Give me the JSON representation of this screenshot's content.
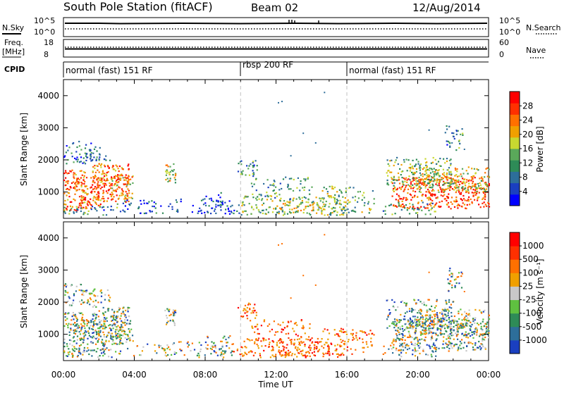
{
  "header": {
    "station": "South Pole Station (fitACF)",
    "beam": "Beam 02",
    "date": "12/Aug/2014"
  },
  "aux_labels": {
    "nsky": "N.Sky",
    "nsearch": "N.Search",
    "freq_line1": "Freq.",
    "freq_line2": "[MHz]",
    "nave": "Nave",
    "cpid": "CPID"
  },
  "aux_ticks": {
    "nsky_left_top": "10^5",
    "nsky_left_bottom": "10^0",
    "nsearch_right_top": "10^5",
    "nsearch_right_bottom": "10^0",
    "freq_top": "18",
    "freq_bottom": "8",
    "nave_top": "60",
    "nave_bottom": "0"
  },
  "cpid_segments": [
    {
      "label": "normal (fast) 151 RF",
      "start_hour": 0,
      "end_hour": 10
    },
    {
      "label": "rbsp 200 RF",
      "start_hour": 10,
      "end_hour": 16
    },
    {
      "label": "normal (fast) 151 RF",
      "start_hour": 16,
      "end_hour": 24
    }
  ],
  "x_axis": {
    "label": "Time UT",
    "ticks": [
      "00:00",
      "04:00",
      "08:00",
      "12:00",
      "16:00",
      "20:00",
      "00:00"
    ],
    "range_hours": [
      0,
      24
    ]
  },
  "panels": {
    "power": {
      "ylabel": "Slant Range [km]",
      "colorbar_label": "Power [dB]",
      "colorbar_ticks": [
        "28",
        "24",
        "20",
        "16",
        "12",
        "8",
        "4"
      ]
    },
    "velocity": {
      "ylabel": "Slant Range [km]",
      "colorbar_label": "Velocity  [m s⁻¹]",
      "colorbar_ticks": [
        "1000",
        "500",
        "100",
        "25",
        "-25",
        "-100",
        "-500",
        "-1000"
      ]
    }
  },
  "colors": {
    "power_scale": [
      "#0000ff",
      "#1a3fc0",
      "#2d6e9a",
      "#2e8b57",
      "#5aa85a",
      "#c8d830",
      "#f0a000",
      "#ff7000",
      "#ff3000",
      "#ff0000"
    ],
    "velocity_scale": [
      "#1a3fc0",
      "#2d6e9a",
      "#2e8b57",
      "#5fc040",
      "#c8c8c8",
      "#f0a000",
      "#ff7000",
      "#ff3000",
      "#ff0000"
    ],
    "axis": "#000000",
    "divider": "#c0c0c0"
  },
  "chart_data": {
    "type": "heatmap",
    "x_range_hours": [
      0,
      24
    ],
    "y_range_km": [
      180,
      4500
    ],
    "y_ticks_km": [
      1000,
      2000,
      3000,
      4000
    ],
    "mode_change_hours": [
      10,
      16
    ]
  }
}
